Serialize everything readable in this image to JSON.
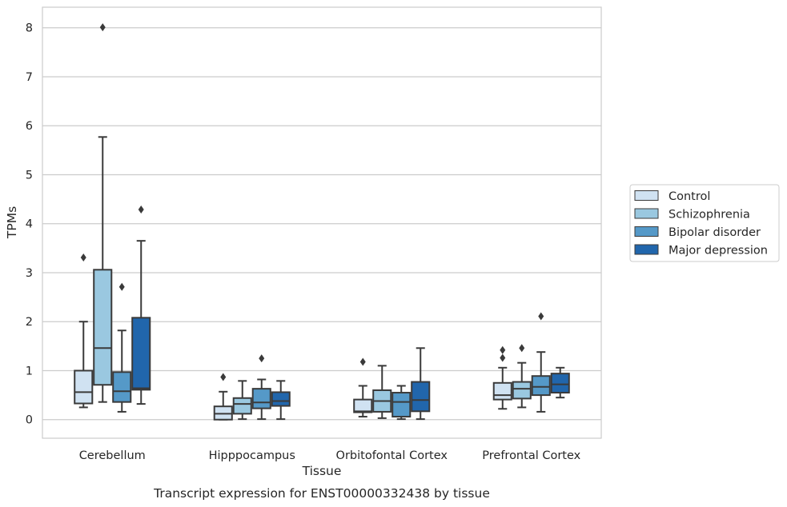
{
  "caption": "Transcript expression for ENST00000332438 by tissue",
  "chart_data": {
    "type": "box",
    "xlabel": "Tissue",
    "ylabel": "TPMs",
    "ylim": [
      -0.38,
      8.42
    ],
    "yticks": [
      0,
      1,
      2,
      3,
      4,
      5,
      6,
      7,
      8
    ],
    "grid": true,
    "legend_position": "right",
    "categories": [
      "Cerebellum",
      "Hipppocampus",
      "Orbitofontal Cortex",
      "Prefrontal Cortex"
    ],
    "series": [
      {
        "name": "Control",
        "color": "#d0e2f2",
        "boxes": [
          {
            "whislo": 0.25,
            "q1": 0.33,
            "med": 0.56,
            "q3": 1.0,
            "whishi": 2.0,
            "fliers": [
              3.31
            ]
          },
          {
            "whislo": 0.0,
            "q1": 0.0,
            "med": 0.12,
            "q3": 0.27,
            "whishi": 0.57,
            "fliers": [
              0.87
            ]
          },
          {
            "whislo": 0.06,
            "q1": 0.15,
            "med": 0.17,
            "q3": 0.41,
            "whishi": 0.69,
            "fliers": [
              1.18
            ]
          },
          {
            "whislo": 0.22,
            "q1": 0.41,
            "med": 0.5,
            "q3": 0.75,
            "whishi": 1.06,
            "fliers": [
              1.26,
              1.42
            ]
          }
        ]
      },
      {
        "name": "Schizophrenia",
        "color": "#9ac8e0",
        "boxes": [
          {
            "whislo": 0.36,
            "q1": 0.71,
            "med": 1.46,
            "q3": 3.06,
            "whishi": 5.77,
            "fliers": [
              8.01
            ]
          },
          {
            "whislo": 0.01,
            "q1": 0.12,
            "med": 0.32,
            "q3": 0.44,
            "whishi": 0.79,
            "fliers": []
          },
          {
            "whislo": 0.03,
            "q1": 0.16,
            "med": 0.38,
            "q3": 0.6,
            "whishi": 1.1,
            "fliers": []
          },
          {
            "whislo": 0.25,
            "q1": 0.43,
            "med": 0.63,
            "q3": 0.77,
            "whishi": 1.16,
            "fliers": [
              1.46
            ]
          }
        ]
      },
      {
        "name": "Bipolar disorder",
        "color": "#5599c8",
        "boxes": [
          {
            "whislo": 0.16,
            "q1": 0.36,
            "med": 0.58,
            "q3": 0.97,
            "whishi": 1.82,
            "fliers": [
              2.71
            ]
          },
          {
            "whislo": 0.01,
            "q1": 0.23,
            "med": 0.35,
            "q3": 0.63,
            "whishi": 0.82,
            "fliers": [
              1.25
            ]
          },
          {
            "whislo": 0.01,
            "q1": 0.06,
            "med": 0.36,
            "q3": 0.55,
            "whishi": 0.69,
            "fliers": []
          },
          {
            "whislo": 0.16,
            "q1": 0.5,
            "med": 0.67,
            "q3": 0.89,
            "whishi": 1.38,
            "fliers": [
              2.11
            ]
          }
        ]
      },
      {
        "name": "Major depression",
        "color": "#2166ac",
        "boxes": [
          {
            "whislo": 0.32,
            "q1": 0.61,
            "med": 0.64,
            "q3": 2.08,
            "whishi": 3.65,
            "fliers": [
              4.29
            ]
          },
          {
            "whislo": 0.01,
            "q1": 0.28,
            "med": 0.38,
            "q3": 0.56,
            "whishi": 0.79,
            "fliers": []
          },
          {
            "whislo": 0.01,
            "q1": 0.17,
            "med": 0.4,
            "q3": 0.77,
            "whishi": 1.46,
            "fliers": []
          },
          {
            "whislo": 0.45,
            "q1": 0.55,
            "med": 0.72,
            "q3": 0.94,
            "whishi": 1.06,
            "fliers": []
          }
        ]
      }
    ]
  }
}
